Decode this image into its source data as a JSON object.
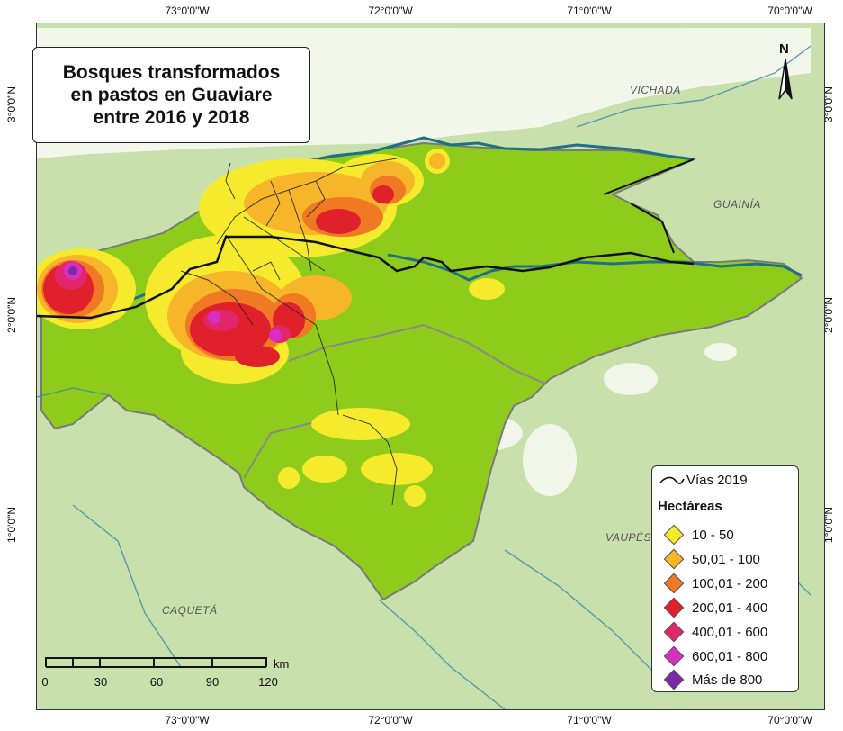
{
  "map_title_lines": [
    "Bosques transformados",
    "en pastos en Guaviare",
    "entre 2016 y 2018"
  ],
  "coordinates": {
    "top": [
      "73°0'0\"W",
      "72°0'0\"W",
      "71°0'0\"W",
      "70°0'0\"W"
    ],
    "bottom": [
      "73°0'0\"W",
      "72°0'0\"W",
      "71°0'0\"W",
      "70°0'0\"W"
    ],
    "left": [
      "3°0'0\"N",
      "2°0'0\"N",
      "1°0'0\"N"
    ],
    "right": [
      "3°0'0\"N",
      "2°0'0\"N",
      "1°0'0\"N"
    ]
  },
  "regions": {
    "vichada": "VICHADA",
    "guainia": "GUAINÍA",
    "vaupes": "VAUPÉS",
    "caqueta": "CAQUETÁ"
  },
  "north_arrow": "N",
  "scale_bar": {
    "ticks": [
      "0",
      "30",
      "60",
      "90",
      "120"
    ],
    "unit": "km"
  },
  "legend": {
    "roads_label": "Vías 2019",
    "hectares_title": "Hectáreas",
    "classes": [
      {
        "label": "10 - 50",
        "color": "#f5ea2b"
      },
      {
        "label": "50,01 - 100",
        "color": "#f7b52a"
      },
      {
        "label": "100,01 - 200",
        "color": "#ef7a23"
      },
      {
        "label": "200,01 - 400",
        "color": "#e0202a"
      },
      {
        "label": "400,01 - 600",
        "color": "#e3266c"
      },
      {
        "label": "600,01 - 800",
        "color": "#d92ec0"
      },
      {
        "label": "Más de 800",
        "color": "#7a2aa8"
      }
    ]
  },
  "colors": {
    "background_land": "#c8e0ac",
    "guaviare_forest": "#8fcb1a",
    "rivers": "#1f6f88",
    "department_boundary": "#808080",
    "roads": "#222222"
  }
}
